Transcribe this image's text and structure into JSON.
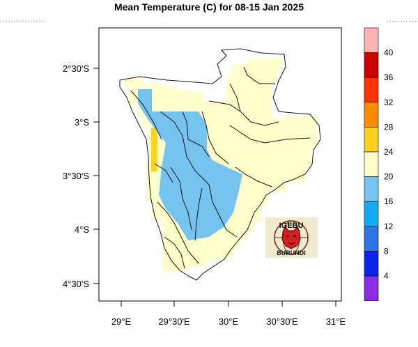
{
  "title": "Mean Temperature (C) for 08-15 Jan 2025",
  "x_axis": {
    "ticks": [
      "29°E",
      "29°30'E",
      "30°E",
      "30°30'E",
      "31°E"
    ]
  },
  "y_axis": {
    "ticks": [
      "2°30'S",
      "3°S",
      "3°30'S",
      "4°S",
      "4°30'S"
    ]
  },
  "colorbar": {
    "labels": [
      "40",
      "36",
      "32",
      "28",
      "24",
      "20",
      "16",
      "12",
      "8",
      "4"
    ],
    "colors": [
      "#ffb3b3",
      "#cc0000",
      "#ff3300",
      "#ff8c00",
      "#ffd21f",
      "#ffffcc",
      "#74c4ef",
      "#12aaf0",
      "#2d74e6",
      "#0a24ee",
      "#8a2ee6"
    ]
  },
  "logo": {
    "top_text": "IGEBU",
    "bottom_text": "BURUNDI"
  }
}
